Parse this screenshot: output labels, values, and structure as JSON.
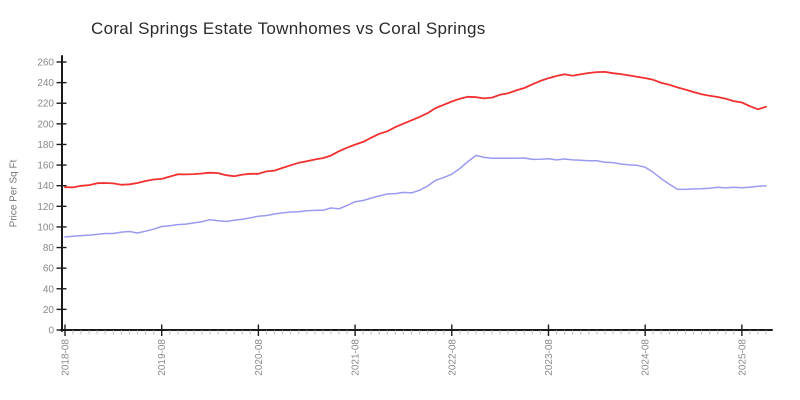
{
  "page": {
    "background": "#ffffff"
  },
  "chart_data": {
    "type": "line",
    "style": "xkcd-sketch",
    "title": "Coral Springs Estate Townhomes vs Coral Springs",
    "xlabel": "",
    "ylabel": "Price Per Sq Ft",
    "grid": false,
    "legend_position": "none",
    "ylim": [
      0,
      260
    ],
    "y_ticks": [
      0,
      20,
      40,
      60,
      80,
      100,
      120,
      140,
      160,
      180,
      200,
      220,
      240,
      260
    ],
    "x_major_tick_labels": [
      "2018-08",
      "2019-08",
      "2020-08",
      "2021-08",
      "2022-08",
      "2023-08",
      "2024-08",
      "2025-08"
    ],
    "x_start_month": "2018-08",
    "x_end_month": "2025-11",
    "x_minor_tick_interval": "1 month",
    "points_per_series": 88,
    "colors": {
      "axis": "#1a1a1a",
      "tick_label": "#8a8a8a",
      "minor_tick": "#c9c9c9",
      "title": "#2b2b2b"
    },
    "series": [
      {
        "name": "Coral Springs Estate Townhomes",
        "color": "#f23030",
        "values": [
          138,
          138.5,
          140,
          141,
          142,
          143,
          142,
          141,
          141.5,
          142.5,
          144,
          145.5,
          147,
          149,
          150.5,
          151,
          151.5,
          152,
          152.5,
          152,
          150.5,
          149,
          150.5,
          151,
          152,
          153.5,
          155,
          157,
          160,
          162.5,
          163.5,
          165,
          167,
          169,
          173,
          176.5,
          180,
          183,
          187,
          190,
          193,
          197,
          200,
          203,
          206.5,
          210,
          215,
          219,
          222,
          224.5,
          226,
          225.5,
          225,
          226,
          228,
          230,
          232,
          235,
          238.5,
          242,
          244,
          246.5,
          248,
          247,
          248.5,
          249,
          250,
          250,
          249,
          248,
          247.5,
          246,
          244,
          242.5,
          240,
          238,
          235.5,
          233,
          231,
          229,
          227.5,
          225.5,
          224,
          222,
          220.5,
          217,
          214.5,
          216
        ]
      },
      {
        "name": "Coral Springs",
        "color": "#9a9af0",
        "values": [
          90.5,
          91,
          92,
          92.5,
          93,
          93.5,
          94,
          95,
          95.5,
          94,
          96,
          98,
          100,
          101,
          102,
          103,
          104,
          105.5,
          107,
          106,
          105.5,
          106,
          107,
          108.5,
          110,
          111,
          112.5,
          113.5,
          114.5,
          115,
          115.5,
          116,
          116.5,
          118.5,
          118,
          120.5,
          124,
          126,
          128,
          130,
          131.5,
          132.5,
          134,
          133,
          135.5,
          140,
          145,
          148,
          151.5,
          156.5,
          163,
          169,
          167,
          167,
          167,
          167,
          166.5,
          166.5,
          166,
          166,
          166,
          165.5,
          165.5,
          165.5,
          165,
          164.5,
          164,
          163,
          162.5,
          161.5,
          160.5,
          159.5,
          158.5,
          153,
          147,
          141,
          137,
          136.5,
          136.5,
          137,
          137.5,
          138,
          138,
          138.5,
          138.5,
          139,
          139.5,
          140
        ]
      }
    ]
  }
}
